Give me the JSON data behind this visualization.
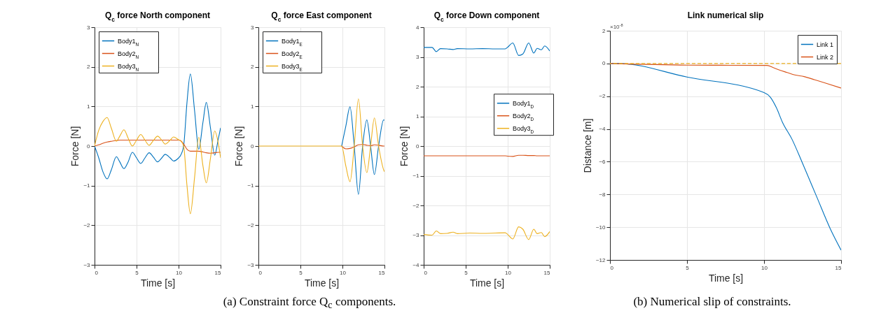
{
  "chart_data": [
    {
      "type": "line",
      "title": "Q$_{c}$ force North component",
      "xlabel": "Time [s]",
      "ylabel": "Force [N]",
      "xlim": [
        0,
        15
      ],
      "ylim": [
        -3,
        3
      ],
      "xticks": [
        0,
        5,
        10,
        15
      ],
      "yticks": [
        -3,
        -2,
        -1,
        0,
        1,
        2,
        3
      ],
      "grid": true,
      "legend": "top left",
      "x": [
        0,
        0.5,
        1,
        1.5,
        2,
        2.6,
        3,
        3.5,
        4,
        4.5,
        5,
        5.5,
        6,
        6.5,
        7,
        7.5,
        8,
        8.4,
        9,
        9.4,
        10,
        10.2,
        10.6,
        11,
        11.4,
        11.9,
        12.4,
        12.9,
        13.3,
        13.8,
        14.3,
        14.7,
        15
      ],
      "series": [
        {
          "name": "Body1$_{N}$",
          "color": "#0072bd",
          "values": [
            0,
            -0.3,
            -0.65,
            -0.83,
            -0.6,
            -0.27,
            -0.4,
            -0.57,
            -0.4,
            -0.16,
            -0.3,
            -0.44,
            -0.3,
            -0.17,
            -0.28,
            -0.4,
            -0.3,
            -0.21,
            -0.3,
            -0.38,
            -0.3,
            -0.25,
            0,
            1.1,
            1.82,
            0.9,
            -0.08,
            0.6,
            1.1,
            0.45,
            -0.23,
            0.15,
            0.46
          ]
        },
        {
          "name": "Body2$_{N}$",
          "color": "#d95319",
          "values": [
            0,
            0.03,
            0.07,
            0.1,
            0.12,
            0.14,
            0.15,
            0.15,
            0.15,
            0.15,
            0.15,
            0.15,
            0.15,
            0.15,
            0.15,
            0.15,
            0.15,
            0.15,
            0.15,
            0.15,
            0.15,
            0.14,
            0.05,
            -0.08,
            -0.13,
            -0.13,
            -0.13,
            -0.15,
            -0.17,
            -0.18,
            -0.17,
            -0.16,
            -0.16
          ]
        },
        {
          "name": "Body3$_{N}$",
          "color": "#edb120",
          "values": [
            0,
            0.4,
            0.62,
            0.72,
            0.45,
            0.12,
            0.25,
            0.41,
            0.2,
            0,
            0.15,
            0.29,
            0.15,
            0.02,
            0.14,
            0.25,
            0.15,
            0.05,
            0.15,
            0.23,
            0.16,
            0.14,
            0,
            -1,
            -1.71,
            -0.8,
            0.22,
            -0.5,
            -0.93,
            -0.3,
            0.38,
            0.1,
            -0.3
          ]
        }
      ]
    },
    {
      "type": "line",
      "title": "Q$_{c}$ force East component",
      "xlabel": "Time [s]",
      "ylabel": "Force [N]",
      "xlim": [
        0,
        15
      ],
      "ylim": [
        -3,
        3
      ],
      "xticks": [
        0,
        5,
        10,
        15
      ],
      "yticks": [
        -3,
        -2,
        -1,
        0,
        1,
        2,
        3
      ],
      "grid": true,
      "legend": "top left",
      "annotations": [
        "(a) Constraint force Q$_{c}$ components."
      ],
      "x": [
        0,
        5,
        9.9,
        10.4,
        10.9,
        11.4,
        11.9,
        12.4,
        12.9,
        13.35,
        13.8,
        14.3,
        14.9,
        15
      ],
      "series": [
        {
          "name": "Body1$_{E}$",
          "color": "#0072bd",
          "values": [
            null,
            null,
            0,
            0.5,
            0.99,
            0,
            -1.22,
            0,
            0.66,
            0,
            -0.72,
            0,
            0.66,
            0.65
          ]
        },
        {
          "name": "Body2$_{E}$",
          "color": "#d95319",
          "values": [
            null,
            null,
            0,
            -0.07,
            -0.06,
            -0.02,
            0.03,
            0.04,
            0.02,
            0.01,
            0.03,
            0.02,
            0,
            0
          ]
        },
        {
          "name": "Body3$_{E}$",
          "color": "#edb120",
          "values": [
            0,
            0,
            0,
            -0.5,
            -0.9,
            0,
            1.19,
            0,
            -0.67,
            0,
            0.71,
            0,
            -0.6,
            -0.65
          ]
        }
      ]
    },
    {
      "type": "line",
      "title": "Q$_{c}$ force Down component",
      "xlabel": "Time [s]",
      "ylabel": "Force [N]",
      "xlim": [
        0,
        15
      ],
      "ylim": [
        -4,
        4
      ],
      "xticks": [
        0,
        5,
        10,
        15
      ],
      "yticks": [
        -4,
        -3,
        -2,
        -1,
        0,
        1,
        2,
        3,
        4
      ],
      "grid": true,
      "legend": "right",
      "x": [
        0,
        1,
        1.5,
        2,
        2.8,
        3.5,
        4,
        5.5,
        7,
        8.5,
        9.7,
        10,
        10.6,
        11.3,
        11.8,
        12.5,
        13.1,
        13.5,
        14,
        14.4,
        15
      ],
      "series": [
        {
          "name": "Body1$_{D}$",
          "color": "#0072bd",
          "values": [
            3.32,
            3.32,
            3.18,
            3.28,
            3.27,
            3.25,
            3.28,
            3.27,
            3.28,
            3.27,
            3.27,
            3.33,
            3.47,
            3.05,
            3.1,
            3.47,
            3.13,
            3.29,
            3.24,
            3.37,
            3.2
          ]
        },
        {
          "name": "Body2$_{D}$",
          "color": "#d95319",
          "values": [
            -0.33,
            -0.33,
            -0.33,
            -0.33,
            -0.33,
            -0.33,
            -0.33,
            -0.33,
            -0.33,
            -0.33,
            -0.33,
            -0.34,
            -0.35,
            -0.31,
            -0.31,
            -0.32,
            -0.32,
            -0.33,
            -0.33,
            -0.33,
            -0.33
          ]
        },
        {
          "name": "Body3$_{D}$",
          "color": "#edb120",
          "values": [
            -2.98,
            -3,
            -2.86,
            -2.95,
            -2.94,
            -2.9,
            -2.95,
            -2.93,
            -2.94,
            -2.93,
            -2.92,
            -2.98,
            -3.13,
            -2.72,
            -2.8,
            -3.15,
            -2.8,
            -2.95,
            -2.91,
            -3.05,
            -2.88
          ]
        }
      ]
    },
    {
      "type": "line",
      "title": "Link numerical slip",
      "xlabel": "Time [s]",
      "ylabel": "Distance [m]",
      "xlim": [
        0,
        15
      ],
      "ylim": [
        -12,
        2
      ],
      "xticks": [
        0,
        5,
        10,
        15
      ],
      "yticks": [
        -12,
        -10,
        -8,
        -6,
        -4,
        -2,
        0,
        2
      ],
      "grid": true,
      "legend": "top right",
      "annotations": [
        "×10$^{-8}$",
        "(b) Numerical slip of constraints."
      ],
      "ref_lines": [
        {
          "axis": "y",
          "value": 0,
          "color": "#edb120",
          "line_style": "dashed"
        }
      ],
      "series": [
        {
          "name": "Link 1",
          "color": "#0072bd",
          "x": [
            0,
            0.6,
            5,
            10,
            10.4,
            10.8,
            11.2,
            11.8,
            12.5,
            13.4,
            14.3,
            15
          ],
          "values": [
            0,
            0,
            -0.83,
            -1.78,
            -2.05,
            -2.7,
            -3.6,
            -4.6,
            -6.1,
            -8.1,
            -10.1,
            -11.4
          ]
        },
        {
          "name": "Link 2",
          "color": "#d95319",
          "x": [
            0,
            5,
            10.2,
            10.6,
            11,
            11.5,
            12,
            12.6,
            13.3,
            14,
            15
          ],
          "values": [
            0,
            -0.1,
            -0.12,
            -0.25,
            -0.4,
            -0.55,
            -0.7,
            -0.8,
            -1,
            -1.2,
            -1.5
          ]
        }
      ]
    }
  ]
}
